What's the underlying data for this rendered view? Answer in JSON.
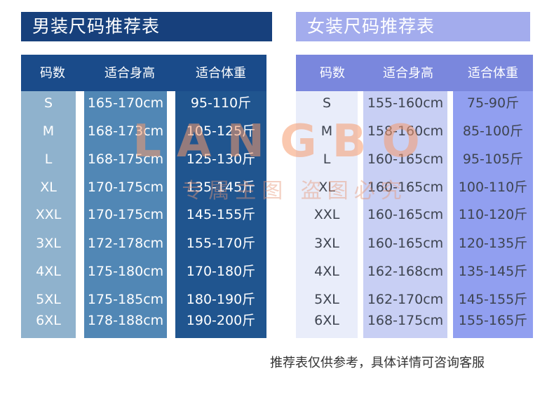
{
  "men": {
    "title": "男装尺码推荐表",
    "headers": [
      "码数",
      "适合身高",
      "适合体重"
    ],
    "sizes": [
      "S",
      "M",
      "L",
      "XL",
      "XXL",
      "3XL",
      "4XL",
      "5XL",
      "6XL"
    ],
    "heights": [
      "165-170cm",
      "168-173cm",
      "168-175cm",
      "170-175cm",
      "170-175cm",
      "172-178cm",
      "175-180cm",
      "175-185cm",
      "178-188cm"
    ],
    "weights": [
      "95-110斤",
      "105-125斤",
      "125-130斤",
      "135-145斤",
      "145-155斤",
      "155-170斤",
      "170-180斤",
      "180-190斤",
      "190-200斤"
    ]
  },
  "women": {
    "title": "女装尺码推荐表",
    "headers": [
      "码数",
      "适合身高",
      "适合体重"
    ],
    "sizes": [
      "S",
      "M",
      "L",
      "XL",
      "XXL",
      "3XL",
      "4XL",
      "5XL",
      "6XL"
    ],
    "heights": [
      "155-160cm",
      "158-160cm",
      "160-165cm",
      "160-165cm",
      "160-165cm",
      "160-165cm",
      "162-168cm",
      "162-170cm",
      "168-175cm"
    ],
    "weights": [
      "75-90斤",
      "85-100斤",
      "95-105斤",
      "100-110斤",
      "110-120斤",
      "120-135斤",
      "135-145斤",
      "145-155斤",
      "155-165斤"
    ]
  },
  "footnote": "推荐表仅供参考，具体详情可咨询客服",
  "watermark": {
    "logo": "LANGBO",
    "text": "专属主图 盗图必究"
  },
  "colors": {
    "men_title": "#17407c",
    "men_header": "#1a4b8a",
    "men_col_size": "#8fb2cd",
    "men_col_height": "#5187b5",
    "men_col_weight": "#20558f",
    "women_title": "#a3aced",
    "women_header": "#7a87dd",
    "women_col_size": "#e9edfa",
    "women_col_height": "#c8cff4",
    "women_col_weight": "#919ff0"
  }
}
